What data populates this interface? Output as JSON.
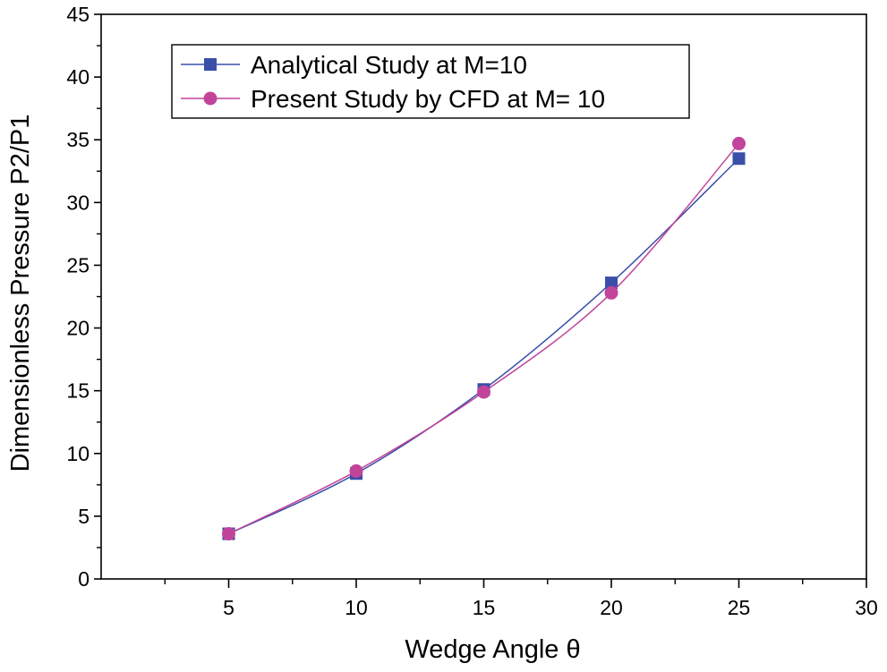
{
  "chart_data": {
    "type": "line",
    "title": "",
    "xlabel": "Wedge Angle θ",
    "ylabel": "Dimensionless Pressure P2/P1",
    "xlim": [
      0,
      30
    ],
    "ylim": [
      0,
      45
    ],
    "xticks": [
      5,
      10,
      15,
      20,
      25,
      30
    ],
    "xticks_minor": [
      2.5,
      7.5,
      12.5,
      17.5,
      22.5,
      27.5
    ],
    "yticks": [
      0,
      5,
      10,
      15,
      20,
      25,
      30,
      35,
      40,
      45
    ],
    "grid": false,
    "legend_position": "top-left",
    "series": [
      {
        "name": "Analytical Study at M=10",
        "marker": "square",
        "color": "#3a4fa8",
        "x": [
          5,
          10,
          15,
          20,
          25
        ],
        "values": [
          3.6,
          8.4,
          15.1,
          23.6,
          33.5
        ]
      },
      {
        "name": "Present Study by CFD at M= 10",
        "marker": "circle",
        "color": "#c2449a",
        "x": [
          5,
          10,
          15,
          20,
          25
        ],
        "values": [
          3.6,
          8.6,
          14.9,
          22.8,
          34.7
        ]
      }
    ]
  }
}
